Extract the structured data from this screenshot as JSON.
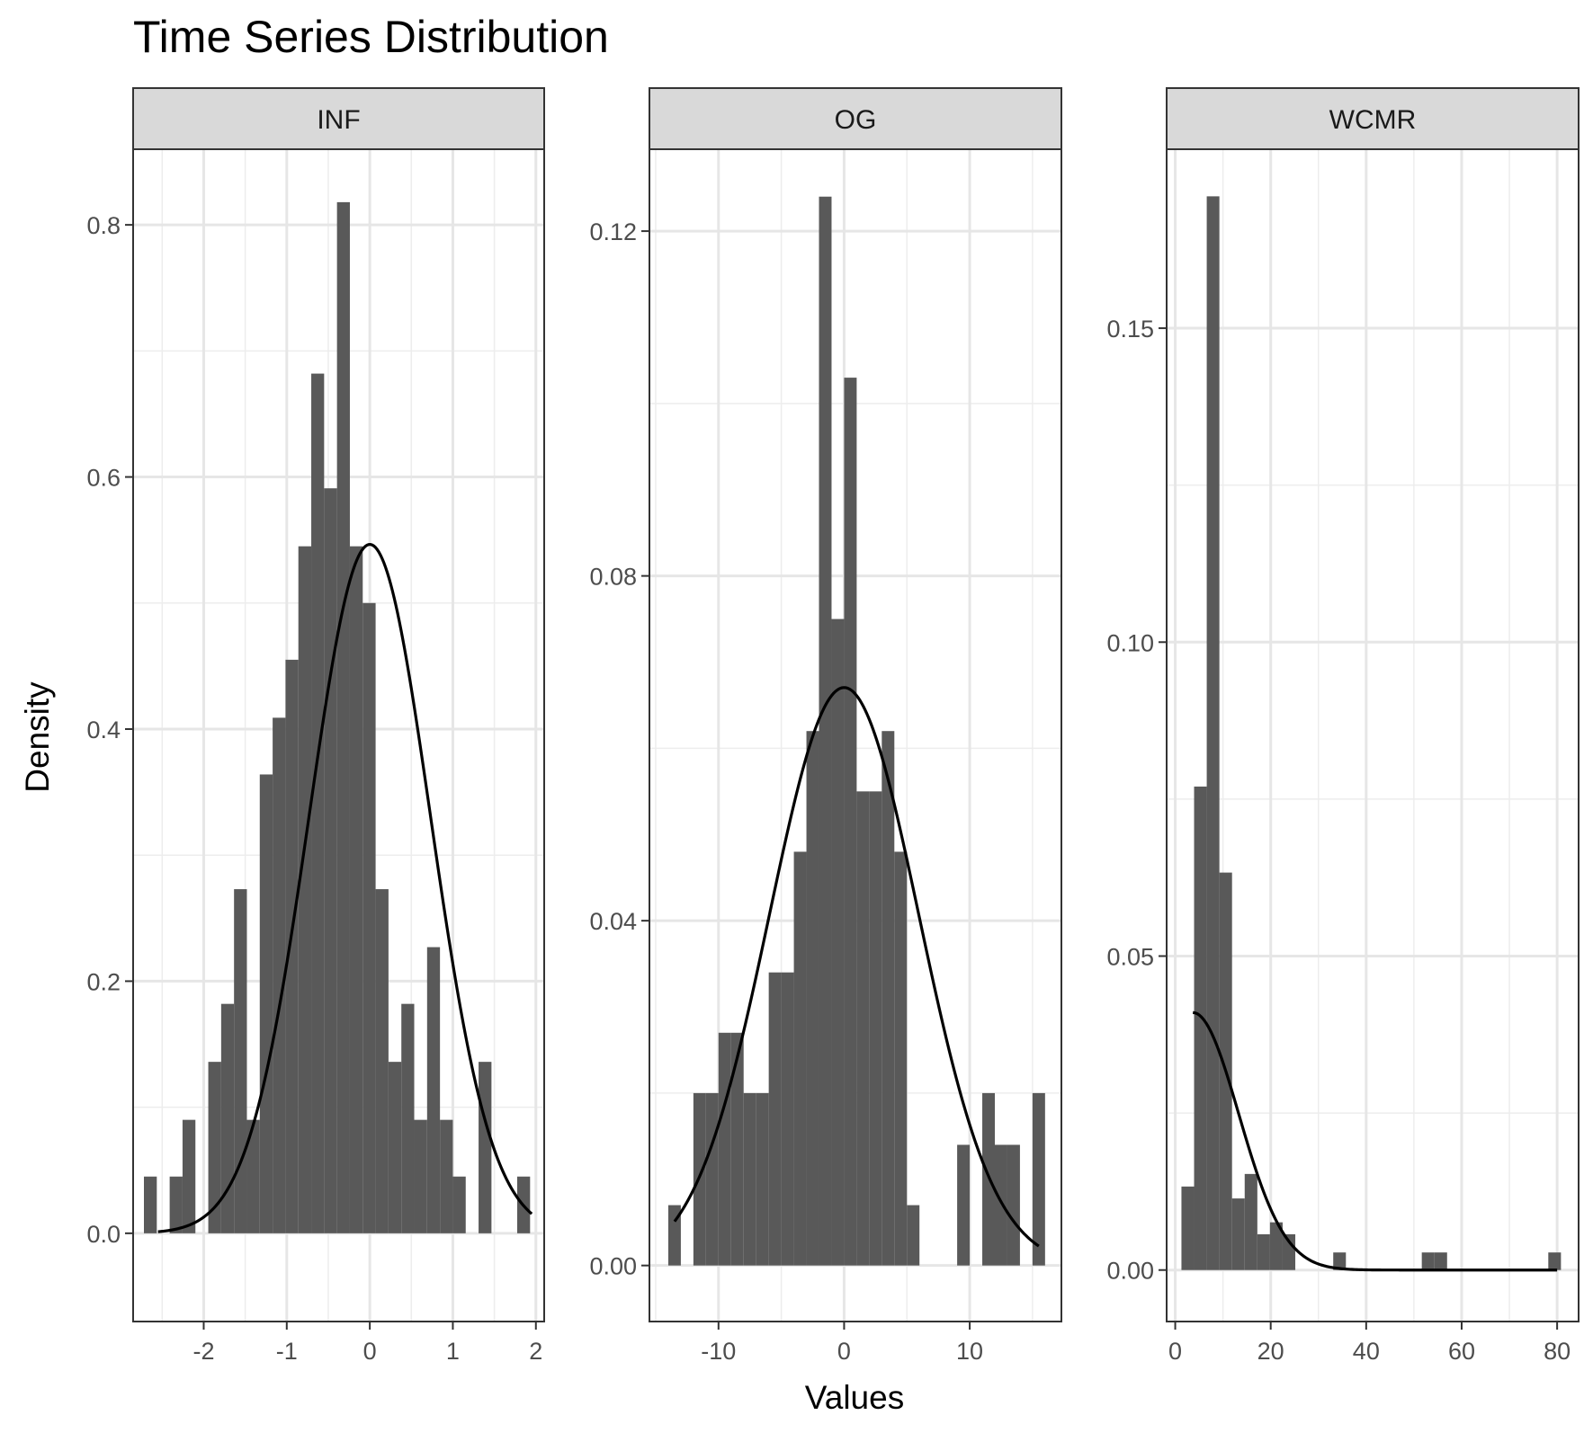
{
  "chart_data": {
    "type": "bar",
    "title": "Time Series Distribution",
    "xlabel": "Values",
    "ylabel": "Density",
    "grid": true,
    "overlay": "normal density curve (black line)",
    "bar_color": "#595959",
    "strip_color": "#d9d9d9",
    "panels": [
      {
        "name": "INF",
        "xlim": [
          -2.85,
          2.1
        ],
        "ylim": [
          -0.07,
          0.86
        ],
        "xticks": [
          -2,
          -1,
          0,
          1,
          2
        ],
        "xtick_labels": [
          "-2",
          "-1",
          "0",
          "1",
          "2"
        ],
        "yticks": [
          0.0,
          0.2,
          0.4,
          0.6,
          0.8
        ],
        "ytick_labels": [
          "0.0",
          "0.2",
          "0.4",
          "0.6",
          "0.8"
        ],
        "bin_start": -2.72,
        "bin_width": 0.155,
        "values": [
          0.045,
          0,
          0.045,
          0.09,
          0,
          0.136,
          0.182,
          0.273,
          0.09,
          0.364,
          0.409,
          0.455,
          0.545,
          0.682,
          0.591,
          0.818,
          0.545,
          0.5,
          0.273,
          0.136,
          0.182,
          0.09,
          0.227,
          0.09,
          0.045,
          0,
          0.136,
          0,
          0,
          0.045
        ],
        "curve": {
          "mean": 0.0,
          "sd": 0.73,
          "x_from": -2.55,
          "x_to": 1.95
        }
      },
      {
        "name": "OG",
        "xlim": [
          -15.5,
          17.3
        ],
        "ylim": [
          -0.0065,
          0.1295
        ],
        "xticks": [
          -10,
          0,
          10
        ],
        "xtick_labels": [
          "-10",
          "0",
          "10"
        ],
        "yticks": [
          0.0,
          0.04,
          0.08,
          0.12
        ],
        "ytick_labels": [
          "0.00",
          "0.04",
          "0.08",
          "0.12"
        ],
        "bin_start": -14.0,
        "bin_width": 1.0,
        "values": [
          0.007,
          0,
          0.02,
          0.02,
          0.027,
          0.027,
          0.02,
          0.02,
          0.034,
          0.034,
          0.048,
          0.062,
          0.124,
          0.075,
          0.103,
          0.055,
          0.055,
          0.062,
          0.048,
          0.007,
          0,
          0,
          0,
          0.014,
          0,
          0.02,
          0.014,
          0.014,
          0,
          0.02
        ],
        "curve": {
          "mean": 0.0,
          "sd": 5.95,
          "x_from": -13.5,
          "x_to": 15.5
        }
      },
      {
        "name": "WCMR",
        "xlim": [
          -1.8,
          84.5
        ],
        "ylim": [
          -0.0082,
          0.1785
        ],
        "xticks": [
          0,
          20,
          40,
          60,
          80
        ],
        "xtick_labels": [
          "0",
          "20",
          "40",
          "60",
          "80"
        ],
        "yticks": [
          0.0,
          0.05,
          0.1,
          0.15
        ],
        "ytick_labels": [
          "0.00",
          "0.05",
          "0.10",
          "0.15"
        ],
        "bin_start": 1.3,
        "bin_width": 2.65,
        "values": [
          0.0133,
          0.077,
          0.171,
          0.0633,
          0.0114,
          0.0153,
          0.0057,
          0.0076,
          0.0057,
          0,
          0,
          0,
          0.0028,
          0,
          0,
          0,
          0,
          0,
          0,
          0.0028,
          0.0028,
          0,
          0,
          0,
          0,
          0,
          0,
          0,
          0,
          0.0028
        ],
        "curve": {
          "mean": 3.7,
          "sd": 9.6,
          "height": 0.041,
          "x_from": 3.7,
          "x_to": 80.0
        }
      }
    ]
  }
}
